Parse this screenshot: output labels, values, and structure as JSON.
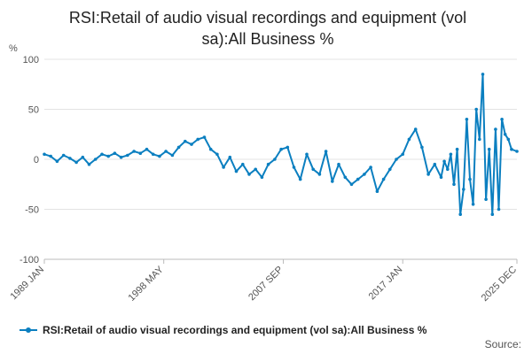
{
  "chart_data": {
    "type": "line",
    "title_line1": "RSI:Retail of audio visual recordings and equipment (vol",
    "title_line2": "sa):All Business %",
    "ylabel": "%",
    "ylim": [
      -100,
      100
    ],
    "yticks": [
      "100",
      "50",
      "0",
      "-50",
      "-100"
    ],
    "xlim": [
      1989.0,
      2025.92
    ],
    "xticks": [
      {
        "value": 1989.0,
        "label": "1989 JAN"
      },
      {
        "value": 1998.33,
        "label": "1998 MAY"
      },
      {
        "value": 2007.67,
        "label": "2007 SEP"
      },
      {
        "value": 2017.0,
        "label": "2017 JAN"
      },
      {
        "value": 2025.92,
        "label": "2025 DEC"
      }
    ],
    "grid": true,
    "legend_position": "bottom",
    "series": [
      {
        "name": "RSI:Retail of audio visual recordings and equipment (vol sa):All Business %",
        "color": "#0b7fc0",
        "x": [
          1989.0,
          1989.5,
          1990.0,
          1990.5,
          1991.0,
          1991.5,
          1992.0,
          1992.5,
          1993.0,
          1993.5,
          1994.0,
          1994.5,
          1995.0,
          1995.5,
          1996.0,
          1996.5,
          1997.0,
          1997.5,
          1998.0,
          1998.5,
          1999.0,
          1999.5,
          2000.0,
          2000.5,
          2001.0,
          2001.5,
          2002.0,
          2002.5,
          2003.0,
          2003.5,
          2004.0,
          2004.5,
          2005.0,
          2005.5,
          2006.0,
          2006.5,
          2007.0,
          2007.5,
          2008.0,
          2008.5,
          2009.0,
          2009.5,
          2010.0,
          2010.5,
          2011.0,
          2011.5,
          2012.0,
          2012.5,
          2013.0,
          2013.5,
          2014.0,
          2014.5,
          2015.0,
          2015.5,
          2016.0,
          2016.5,
          2017.0,
          2017.5,
          2018.0,
          2018.5,
          2019.0,
          2019.5,
          2020.0,
          2020.25,
          2020.5,
          2020.75,
          2021.0,
          2021.25,
          2021.5,
          2021.75,
          2022.0,
          2022.25,
          2022.5,
          2022.75,
          2023.0,
          2023.25,
          2023.5,
          2023.75,
          2024.0,
          2024.25,
          2024.5,
          2024.75,
          2025.0,
          2025.25,
          2025.5,
          2025.92
        ],
        "y": [
          5,
          3,
          -2,
          4,
          1,
          -3,
          2,
          -5,
          0,
          5,
          3,
          6,
          2,
          4,
          8,
          6,
          10,
          5,
          3,
          8,
          4,
          12,
          18,
          15,
          20,
          22,
          10,
          5,
          -8,
          2,
          -12,
          -5,
          -15,
          -10,
          -18,
          -5,
          0,
          10,
          12,
          -8,
          -20,
          5,
          -10,
          -15,
          8,
          -22,
          -5,
          -18,
          -25,
          -20,
          -15,
          -8,
          -32,
          -20,
          -10,
          0,
          5,
          20,
          30,
          12,
          -15,
          -5,
          -18,
          -2,
          -10,
          5,
          -25,
          10,
          -55,
          -30,
          40,
          -20,
          -45,
          50,
          20,
          85,
          -40,
          10,
          -55,
          30,
          -50,
          40,
          25,
          20,
          10,
          8
        ]
      }
    ],
    "source_label": "Source:"
  }
}
